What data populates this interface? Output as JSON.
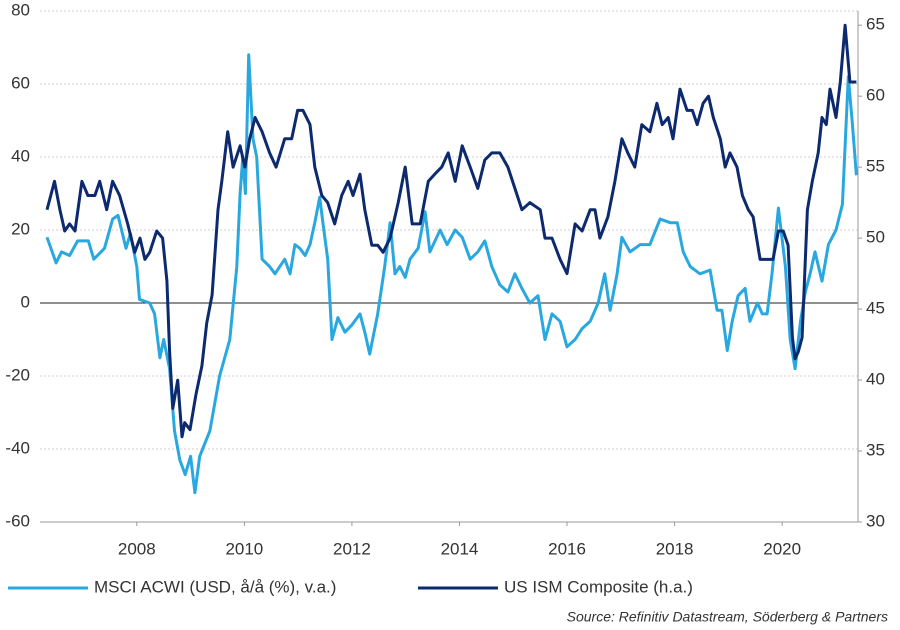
{
  "chart_data": {
    "type": "line",
    "source": "Source: Refinitiv Datastream, Söderberg & Partners",
    "xlim": [
      2006.2,
      2021.41
    ],
    "xticks": [
      2008,
      2010,
      2012,
      2014,
      2016,
      2018,
      2020
    ],
    "ylim": [
      -60,
      80
    ],
    "yticks": [
      -60,
      -40,
      -20,
      0,
      20,
      40,
      60,
      80
    ],
    "y2lim": [
      30,
      66
    ],
    "y2ticks": [
      30,
      35,
      40,
      45,
      50,
      55,
      60,
      65
    ],
    "grid": true,
    "legend": "bottom",
    "series": [
      {
        "name": "MSCI ACWI (USD, å/å (%), v.a.)",
        "color": "#29a8e0",
        "x": [
          2006.33,
          2006.5,
          2006.6,
          2006.75,
          2006.9,
          2007.1,
          2007.2,
          2007.4,
          2007.55,
          2007.65,
          2007.8,
          2007.88,
          2008.0,
          2008.05,
          2008.24,
          2008.33,
          2008.43,
          2008.5,
          2008.61,
          2008.7,
          2008.8,
          2008.9,
          2009.0,
          2009.08,
          2009.17,
          2009.36,
          2009.54,
          2009.73,
          2009.86,
          2009.92,
          2009.97,
          2010.02,
          2010.08,
          2010.16,
          2010.23,
          2010.33,
          2010.47,
          2010.57,
          2010.75,
          2010.85,
          2010.94,
          2011.03,
          2011.13,
          2011.22,
          2011.31,
          2011.4,
          2011.46,
          2011.55,
          2011.63,
          2011.74,
          2011.87,
          2012.0,
          2012.15,
          2012.24,
          2012.33,
          2012.48,
          2012.61,
          2012.71,
          2012.8,
          2012.89,
          2012.99,
          2013.08,
          2013.23,
          2013.36,
          2013.45,
          2013.64,
          2013.77,
          2013.92,
          2014.05,
          2014.2,
          2014.34,
          2014.47,
          2014.6,
          2014.75,
          2014.9,
          2015.03,
          2015.16,
          2015.31,
          2015.46,
          2015.59,
          2015.72,
          2015.87,
          2016.0,
          2016.15,
          2016.28,
          2016.43,
          2016.58,
          2016.7,
          2016.8,
          2016.93,
          2017.02,
          2017.17,
          2017.36,
          2017.54,
          2017.73,
          2017.92,
          2018.05,
          2018.16,
          2018.29,
          2018.47,
          2018.66,
          2018.79,
          2018.88,
          2018.98,
          2019.07,
          2019.18,
          2019.31,
          2019.4,
          2019.54,
          2019.63,
          2019.72,
          2019.81,
          2019.93,
          2020.06,
          2020.15,
          2020.24,
          2020.34,
          2020.43,
          2020.52,
          2020.61,
          2020.74,
          2020.86,
          2021.0,
          2021.12,
          2021.23,
          2021.3,
          2021.38
        ],
        "values": [
          18,
          11,
          14,
          13,
          17,
          17,
          12,
          15,
          23,
          24,
          15,
          19,
          10,
          1,
          0,
          -3,
          -15,
          -10,
          -18,
          -35,
          -43,
          -47,
          -42,
          -52,
          -42,
          -35,
          -20,
          -10,
          10,
          30,
          40,
          30,
          68,
          45,
          40,
          12,
          10,
          8,
          12,
          8,
          16,
          15,
          13,
          16,
          22,
          29,
          22,
          12,
          -10,
          -4,
          -8,
          -6,
          -3,
          -8,
          -14,
          -3,
          10,
          22,
          8,
          10,
          7,
          12,
          15,
          25,
          14,
          20,
          16,
          20,
          18,
          12,
          14,
          17,
          10,
          5,
          3,
          8,
          4,
          0,
          2,
          -10,
          -3,
          -5,
          -12,
          -10,
          -7,
          -5,
          0,
          8,
          -2,
          8,
          18,
          14,
          16,
          16,
          23,
          22,
          22,
          14,
          10,
          8,
          9,
          -2,
          -2,
          -13,
          -5,
          2,
          4,
          -5,
          0,
          -3,
          -3,
          8,
          26,
          10,
          -10,
          -18,
          -5,
          3,
          8,
          14,
          6,
          16,
          20,
          27,
          62,
          50,
          35
        ]
      },
      {
        "name": "US ISM Composite (h.a.)",
        "color": "#0d2a6e",
        "axis": "y2",
        "x": [
          2006.33,
          2006.47,
          2006.57,
          2006.66,
          2006.75,
          2006.85,
          2006.98,
          2007.09,
          2007.22,
          2007.31,
          2007.44,
          2007.55,
          2007.68,
          2007.83,
          2007.96,
          2008.06,
          2008.15,
          2008.24,
          2008.37,
          2008.48,
          2008.56,
          2008.61,
          2008.67,
          2008.76,
          2008.84,
          2008.89,
          2008.99,
          2009.1,
          2009.21,
          2009.3,
          2009.4,
          2009.51,
          2009.58,
          2009.69,
          2009.79,
          2009.92,
          2010.01,
          2010.1,
          2010.2,
          2010.33,
          2010.47,
          2010.59,
          2010.75,
          2010.88,
          2010.99,
          2011.09,
          2011.22,
          2011.31,
          2011.44,
          2011.55,
          2011.68,
          2011.81,
          2011.93,
          2012.02,
          2012.15,
          2012.24,
          2012.37,
          2012.48,
          2012.58,
          2012.71,
          2012.86,
          2012.99,
          2013.12,
          2013.27,
          2013.42,
          2013.54,
          2013.67,
          2013.79,
          2013.92,
          2014.05,
          2014.2,
          2014.34,
          2014.47,
          2014.6,
          2014.75,
          2014.9,
          2015.03,
          2015.16,
          2015.31,
          2015.5,
          2015.59,
          2015.72,
          2015.87,
          2016.0,
          2016.15,
          2016.28,
          2016.43,
          2016.52,
          2016.61,
          2016.76,
          2016.89,
          2017.02,
          2017.13,
          2017.26,
          2017.39,
          2017.54,
          2017.67,
          2017.77,
          2017.88,
          2017.97,
          2018.1,
          2018.23,
          2018.33,
          2018.42,
          2018.53,
          2018.63,
          2018.72,
          2018.85,
          2018.94,
          2019.03,
          2019.16,
          2019.26,
          2019.37,
          2019.46,
          2019.59,
          2019.72,
          2019.83,
          2019.93,
          2020.02,
          2020.11,
          2020.19,
          2020.24,
          2020.3,
          2020.37,
          2020.47,
          2020.56,
          2020.67,
          2020.74,
          2020.82,
          2020.89,
          2021.0,
          2021.08,
          2021.17,
          2021.26,
          2021.38
        ],
        "values": [
          52,
          54,
          52,
          50.5,
          51,
          50.5,
          54,
          53,
          53,
          54,
          52,
          54,
          53,
          51,
          49,
          50,
          48.5,
          49,
          50.5,
          50,
          47,
          42,
          38,
          40,
          36,
          37,
          36.5,
          39,
          41,
          44,
          46,
          52,
          54,
          57.5,
          55,
          56.5,
          55,
          57,
          58.5,
          57.5,
          56,
          55,
          57,
          57,
          59,
          59,
          58,
          55,
          53,
          52.5,
          51,
          53,
          54,
          53,
          54.5,
          52,
          49.5,
          49.5,
          49,
          50,
          52.5,
          55,
          51,
          51,
          54,
          54.5,
          55,
          56,
          54,
          56.5,
          55,
          53.5,
          55.5,
          56,
          56,
          55,
          53.5,
          52,
          52.5,
          52,
          50,
          50,
          48.5,
          47.5,
          51,
          50.5,
          52,
          52,
          50,
          51.5,
          54,
          57,
          56,
          55,
          58,
          57.5,
          59.5,
          58,
          58.5,
          57,
          60.5,
          59,
          59,
          58,
          59.5,
          60,
          58.5,
          57,
          55,
          56,
          55,
          53,
          52,
          51.5,
          48.5,
          48.5,
          48.5,
          50.5,
          50.5,
          49.5,
          43,
          41.5,
          42,
          43,
          52,
          54,
          56,
          58.5,
          58,
          60.5,
          58.5,
          61,
          65,
          61,
          61
        ]
      }
    ]
  }
}
